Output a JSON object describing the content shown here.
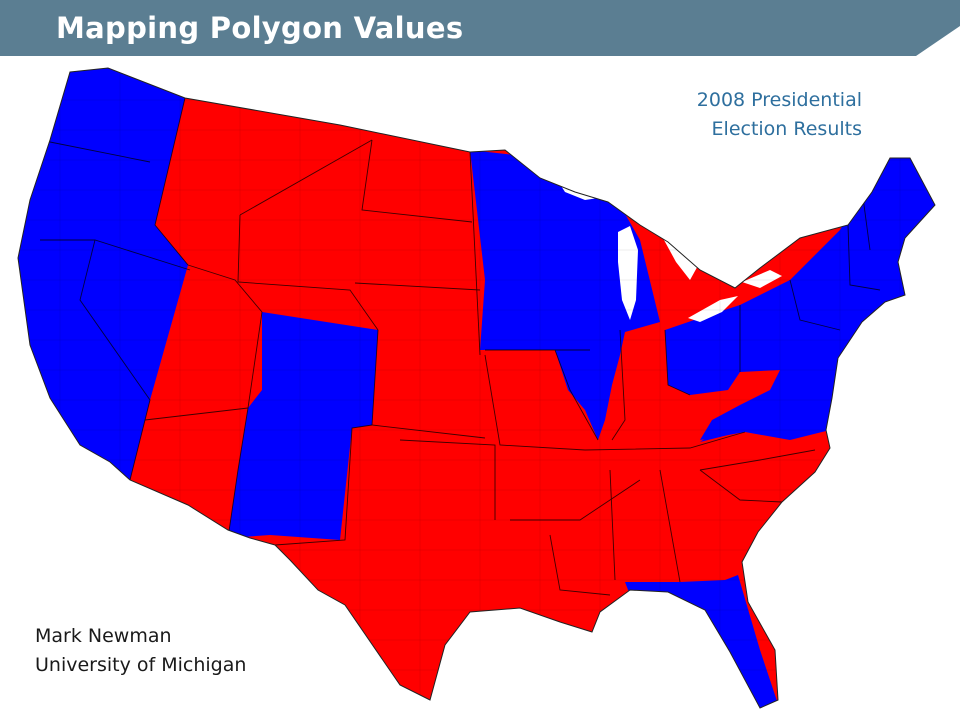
{
  "slide": {
    "title": "Mapping Polygon Values"
  },
  "map": {
    "caption_line1": "2008 Presidential",
    "caption_line2": "Election Results",
    "colors": {
      "democratic": "#0000ff",
      "republican": "#ff0000",
      "borders": "#000000",
      "header_bar": "#5b7e92"
    }
  },
  "credit": {
    "name": "Mark Newman",
    "affiliation": "University of Michigan"
  }
}
